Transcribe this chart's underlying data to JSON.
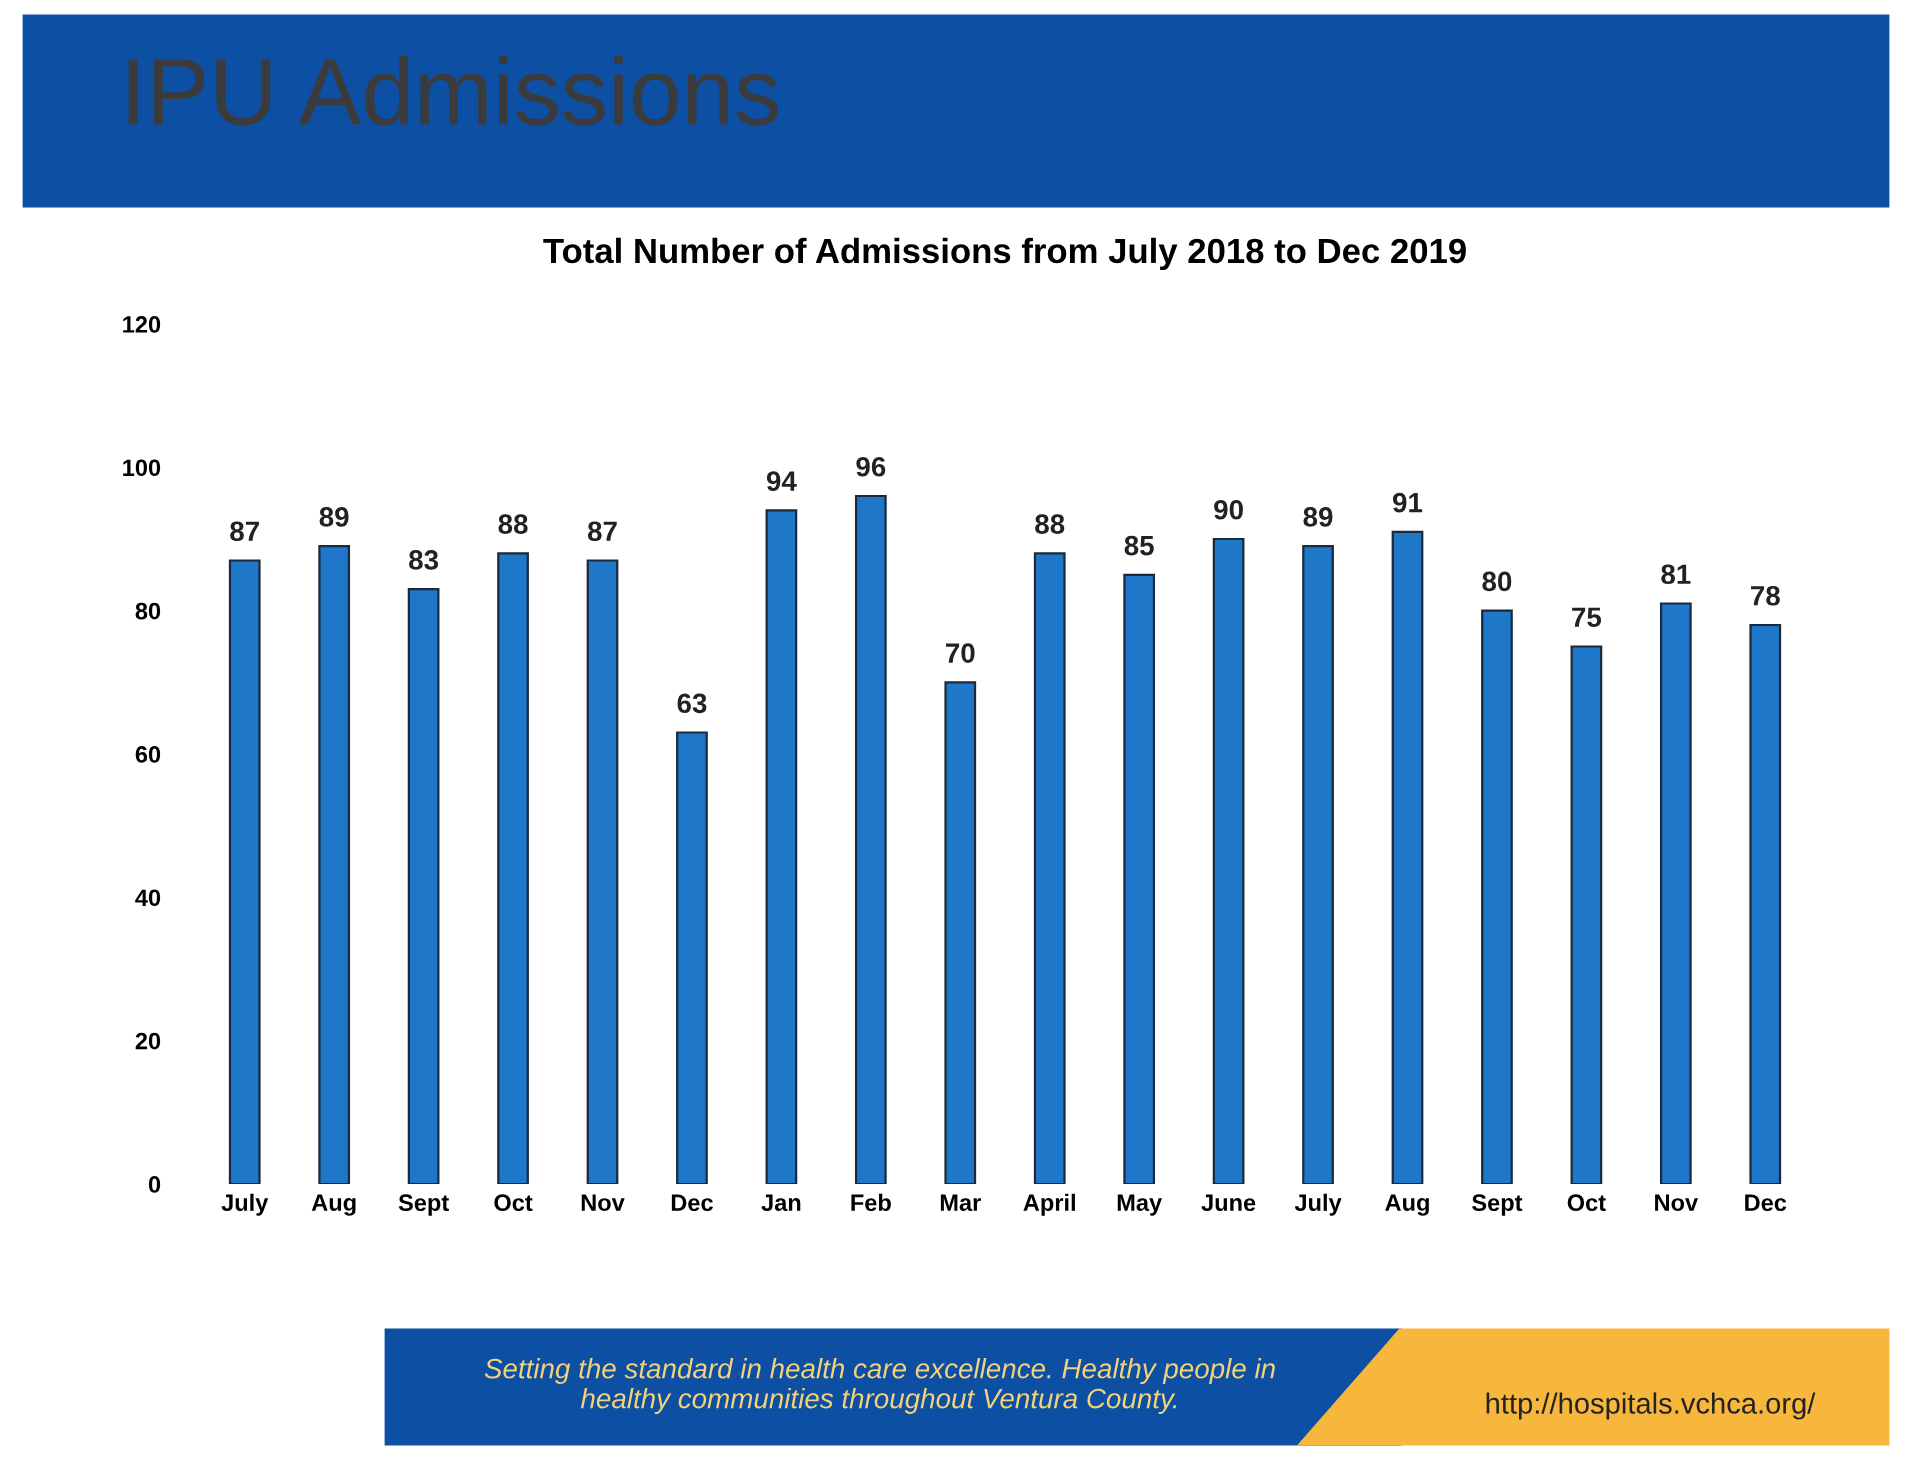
{
  "chart_data": {
    "type": "bar",
    "title": "IPU Admissions",
    "subtitle": "Total Number of Admissions from July 2018 to Dec 2019",
    "categories": [
      "July",
      "Aug",
      "Sept",
      "Oct",
      "Nov",
      "Dec",
      "Jan",
      "Feb",
      "Mar",
      "April",
      "May",
      "June",
      "July",
      "Aug",
      "Sept",
      "Oct",
      "Nov",
      "Dec"
    ],
    "values": [
      87,
      89,
      83,
      88,
      87,
      63,
      94,
      96,
      70,
      88,
      85,
      90,
      89,
      91,
      80,
      75,
      81,
      78
    ],
    "color": "#1f77c9",
    "ylim": [
      0,
      120
    ],
    "yticks": [
      0,
      20,
      40,
      60,
      80,
      100,
      120
    ],
    "grid": false,
    "data_labels": true,
    "annotations": [
      "Setting the standard in health care excellence. Healthy people in healthy communities throughout Ventura County.",
      "http://hospitals.vchca.org/"
    ]
  }
}
